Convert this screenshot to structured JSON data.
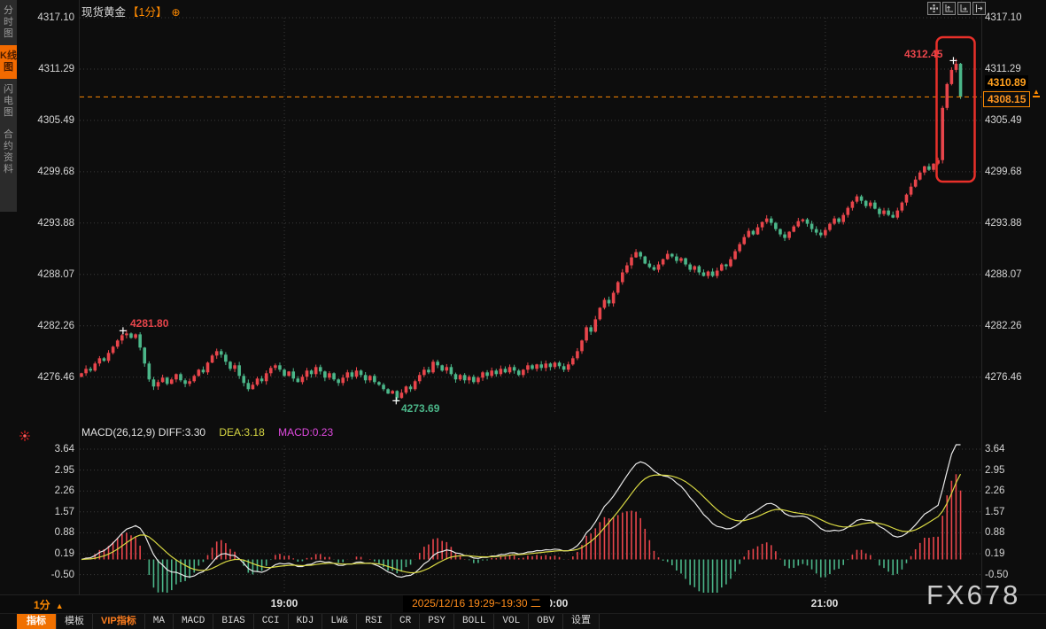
{
  "app": {
    "watermark": "FX678"
  },
  "sidebar": {
    "items": [
      {
        "name": "sidebar-item-timeline",
        "label": "分时图",
        "active": false
      },
      {
        "name": "sidebar-item-kline",
        "label": "K线图",
        "active": true
      },
      {
        "name": "sidebar-item-lightning",
        "label": "闪电图",
        "active": false
      },
      {
        "name": "sidebar-item-contract-info",
        "label": "合约资料",
        "active": false
      }
    ]
  },
  "title": {
    "instrument": "现货黄金",
    "period_tag": "【1分】",
    "add_icon": "⊕"
  },
  "top_icons": [
    {
      "name": "pan-icon"
    },
    {
      "name": "y-axis-scale-icon"
    },
    {
      "name": "x-axis-scale-icon"
    },
    {
      "name": "goto-latest-icon"
    }
  ],
  "timeframe_selector": {
    "label": "1分",
    "arrow": "▲"
  },
  "time_axis": {
    "labels": [
      "19:00",
      "20:00",
      "21:00"
    ],
    "crosshair_tooltip": "2025/12/16 19:29~19:30 二"
  },
  "price_panel": {
    "y_ticks": [
      "4317.10",
      "4311.29",
      "4305.49",
      "4299.68",
      "4293.88",
      "4288.07",
      "4282.26",
      "4276.46"
    ],
    "current_price_badge": "4308.15",
    "close_badge": "4310.89",
    "session_high_label": "4312.45",
    "swing_high_label": "4281.80",
    "swing_low_label": "4273.69"
  },
  "macd_panel": {
    "header_main": "MACD(26,12,9) DIFF:3.30",
    "header_dea": "DEA:3.18",
    "header_macd": "MACD:0.23",
    "y_ticks": [
      "3.64",
      "2.95",
      "2.26",
      "1.57",
      "0.88",
      "0.19",
      "-0.50"
    ]
  },
  "toolbar": {
    "items": [
      {
        "name": "tab-indicators",
        "label": "指标",
        "style": "active"
      },
      {
        "name": "tab-templates",
        "label": "模板",
        "style": "normal"
      },
      {
        "name": "tab-vip-indicators",
        "label": "VIP指标",
        "style": "vip"
      },
      {
        "name": "indicator-ma",
        "label": "MA",
        "style": "mono"
      },
      {
        "name": "indicator-macd",
        "label": "MACD",
        "style": "mono"
      },
      {
        "name": "indicator-bias",
        "label": "BIAS",
        "style": "mono"
      },
      {
        "name": "indicator-cci",
        "label": "CCI",
        "style": "mono"
      },
      {
        "name": "indicator-kdj",
        "label": "KDJ",
        "style": "mono"
      },
      {
        "name": "indicator-lwr",
        "label": "LW&",
        "style": "mono"
      },
      {
        "name": "indicator-rsi",
        "label": "RSI",
        "style": "mono"
      },
      {
        "name": "indicator-cr",
        "label": "CR",
        "style": "mono"
      },
      {
        "name": "indicator-psy",
        "label": "PSY",
        "style": "mono"
      },
      {
        "name": "indicator-boll",
        "label": "BOLL",
        "style": "mono"
      },
      {
        "name": "indicator-vol",
        "label": "VOL",
        "style": "mono"
      },
      {
        "name": "indicator-obv",
        "label": "OBV",
        "style": "mono"
      },
      {
        "name": "settings-button",
        "label": "设置",
        "style": "mono"
      }
    ]
  },
  "colors": {
    "up": "#e8454b",
    "down": "#4bb689",
    "accent": "#ff8a00",
    "dif_line": "#e9e9e9",
    "dea_line": "#d8d843",
    "macd_value": "#e04ae0",
    "highlight_box": "#e8302a",
    "grid": "#3c3c3c"
  },
  "chart_data": [
    {
      "type": "candlestick",
      "title": "现货黄金 1分钟K线",
      "x": {
        "start_time": "18:15",
        "interval_min": 1,
        "tick_labels": [
          "19:00",
          "20:00",
          "21:00"
        ],
        "tick_indices": [
          45,
          105,
          165
        ]
      },
      "ylim": [
        4272.5,
        4317.7
      ],
      "y_ticks": [
        4317.1,
        4311.29,
        4305.49,
        4299.68,
        4293.88,
        4288.07,
        4282.26,
        4276.46
      ],
      "grid": true,
      "first_open": 4276.5,
      "closes": [
        4276.9,
        4277.4,
        4277.2,
        4278.0,
        4278.6,
        4278.3,
        4279.2,
        4279.9,
        4280.6,
        4281.2,
        4281.4,
        4280.9,
        4281.3,
        4279.8,
        4278.0,
        4276.2,
        4275.4,
        4275.9,
        4276.4,
        4275.7,
        4276.2,
        4276.8,
        4276.1,
        4275.7,
        4276.0,
        4276.6,
        4277.3,
        4277.0,
        4278.1,
        4278.9,
        4279.4,
        4279.0,
        4278.2,
        4277.4,
        4277.8,
        4276.6,
        4275.8,
        4275.1,
        4275.6,
        4276.3,
        4276.0,
        4276.9,
        4277.5,
        4277.8,
        4277.3,
        4276.6,
        4277.1,
        4276.3,
        4275.9,
        4276.5,
        4277.2,
        4276.8,
        4277.6,
        4277.1,
        4276.4,
        4276.9,
        4276.2,
        4275.8,
        4276.4,
        4277.0,
        4276.5,
        4277.2,
        4276.7,
        4276.1,
        4276.6,
        4275.9,
        4275.6,
        4275.1,
        4274.6,
        4274.9,
        4274.1,
        4274.7,
        4275.4,
        4275.1,
        4276.0,
        4276.7,
        4277.3,
        4277.0,
        4278.2,
        4277.8,
        4277.2,
        4277.6,
        4276.8,
        4276.2,
        4276.7,
        4276.1,
        4276.5,
        4275.9,
        4276.4,
        4277.0,
        4276.6,
        4277.2,
        4276.8,
        4277.4,
        4277.0,
        4277.6,
        4277.2,
        4276.7,
        4277.3,
        4277.8,
        4277.4,
        4277.9,
        4277.5,
        4278.0,
        4277.6,
        4278.1,
        4277.7,
        4277.3,
        4277.9,
        4278.6,
        4279.4,
        4280.6,
        4282.1,
        4281.6,
        4283.0,
        4284.3,
        4285.2,
        4284.8,
        4286.0,
        4287.2,
        4288.3,
        4289.1,
        4290.0,
        4290.6,
        4290.1,
        4289.3,
        4288.9,
        4288.6,
        4289.2,
        4289.8,
        4290.4,
        4290.1,
        4289.6,
        4289.9,
        4289.2,
        4288.6,
        4289.0,
        4288.3,
        4287.9,
        4288.4,
        4287.9,
        4288.5,
        4289.2,
        4289.0,
        4289.8,
        4290.7,
        4291.5,
        4292.3,
        4293.0,
        4292.6,
        4293.4,
        4294.0,
        4294.4,
        4293.9,
        4293.2,
        4292.6,
        4292.2,
        4292.9,
        4293.5,
        4294.1,
        4294.3,
        4293.8,
        4293.2,
        4292.8,
        4292.5,
        4293.1,
        4293.8,
        4294.4,
        4294.0,
        4294.8,
        4295.6,
        4296.3,
        4296.9,
        4296.4,
        4295.8,
        4296.2,
        4295.5,
        4294.9,
        4295.3,
        4294.8,
        4294.5,
        4295.3,
        4296.2,
        4297.1,
        4298.0,
        4298.8,
        4299.6,
        4300.3,
        4299.9,
        4300.6,
        4301.0,
        4306.9,
        4309.6,
        4311.2,
        4311.9,
        4308.15
      ],
      "markers": {
        "session_high": {
          "index": 194,
          "price": 4312.45
        },
        "swing_high": {
          "index": 10,
          "price": 4281.8
        },
        "swing_low": {
          "index": 70,
          "price": 4273.69
        }
      },
      "current_price": 4308.15,
      "close_badge": 4310.89,
      "highlight_box_candles": [
        191,
        198
      ]
    },
    {
      "type": "macd",
      "params": [
        26,
        12,
        9
      ],
      "dif": 3.3,
      "dea": 3.18,
      "hist": 0.23,
      "y_ticks": [
        3.64,
        2.95,
        2.26,
        1.57,
        0.88,
        0.19,
        -0.5
      ],
      "grid": true,
      "note": "DIF/DEA/histogram computed from candle closes with EMA(12,26,9), histogram = 2*(DIF-DEA)"
    }
  ]
}
